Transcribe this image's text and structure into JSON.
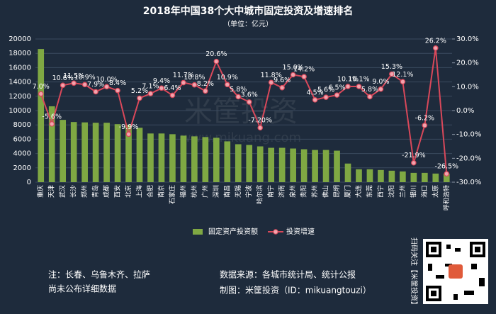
{
  "chart_data": {
    "type": "bar-line",
    "title": "2018年中国38个大中城市固定投资及增速排名",
    "subtitle": "（单位：亿元）",
    "categories": [
      "重庆",
      "天津",
      "武汉",
      "长沙",
      "郑州",
      "青岛",
      "成都",
      "西安",
      "北京",
      "上海",
      "合肥",
      "南京",
      "石家庄",
      "福州",
      "杭州",
      "广州",
      "深圳",
      "南昌",
      "无锡",
      "宁波",
      "哈尔滨",
      "南宁",
      "济南",
      "泉州",
      "贵阳",
      "苏州",
      "佛山",
      "昆明",
      "厦门",
      "大连",
      "东莞",
      "西宁",
      "沈阳",
      "兰州",
      "银川",
      "海口",
      "太原",
      "呼和浩特"
    ],
    "series": [
      {
        "name": "固定资产投资额",
        "type": "bar",
        "color": "#7fa843",
        "values": [
          18600,
          10600,
          8700,
          8400,
          8350,
          8300,
          8300,
          8100,
          8000,
          7600,
          6800,
          6800,
          6700,
          6500,
          6400,
          6300,
          6200,
          5700,
          5300,
          5200,
          5000,
          4800,
          4800,
          4700,
          4600,
          4500,
          4500,
          4400,
          2600,
          1800,
          1800,
          1700,
          1600,
          1500,
          1300,
          1300,
          1200,
          1200
        ]
      },
      {
        "name": "投资增速",
        "type": "line",
        "axis": "y2",
        "color": "#d9485a",
        "values": [
          7.0,
          -5.6,
          10.6,
          11.5,
          10.9,
          7.9,
          10.0,
          8.4,
          -9.9,
          5.2,
          7.1,
          9.4,
          6.4,
          11.7,
          10.8,
          8.2,
          20.6,
          10.9,
          5.8,
          3.6,
          -7.2,
          11.8,
          9.6,
          15.0,
          14.2,
          4.5,
          5.6,
          6.5,
          10.1,
          10.1,
          5.8,
          9.0,
          15.3,
          12.1,
          -21.9,
          -6.2,
          26.2,
          -26.5
        ],
        "value_labels": [
          "7.0%",
          "-5.6%",
          "10.6%",
          "11.5%",
          "10.9%",
          "7.9%",
          "10.0%",
          "8.4%",
          "-9.9%",
          "5.2%",
          "7.1%",
          "9.4%",
          "6.4%",
          "11.7%",
          "10.8%",
          "8.2%",
          "20.6%",
          "10.9%",
          "5.8%",
          "3.6%",
          "-7.20%",
          "11.8%",
          "9.6%",
          "15.0%",
          "14.2%",
          "4.5%",
          "5.6%",
          "6.5%",
          "10.1%",
          "10.1%",
          "5.8%",
          "9.0%",
          "15.3%",
          "12.1%",
          "-21.9%",
          "-6.2%",
          "26.2%",
          "-26.5%"
        ]
      }
    ],
    "ylim": [
      0,
      20000
    ],
    "yticks": [
      0,
      2000,
      4000,
      6000,
      8000,
      10000,
      12000,
      14000,
      16000,
      18000,
      20000
    ],
    "y2lim": [
      -30,
      30
    ],
    "y2ticks": [
      {
        "value": -30,
        "label": "-30.0%"
      },
      {
        "value": -20,
        "label": "-20.0%"
      },
      {
        "value": -10,
        "label": "-10.0%"
      },
      {
        "value": 0,
        "label": "0.0%"
      },
      {
        "value": 10,
        "label": "10.0%"
      },
      {
        "value": 20,
        "label": "20.0%"
      },
      {
        "value": 30,
        "label": "30.0%"
      }
    ],
    "grid": true,
    "legend": "bottom"
  },
  "watermark": {
    "brand": "米筐投资",
    "url": "www.mikuang.com"
  },
  "footer": {
    "note": [
      "注：长春、乌鲁木齐、拉萨",
      "尚未公布详细数据"
    ],
    "source": "数据来源：各城市统计局、统计公报",
    "credit": "制图：米筐投资（ID：mikuangtouzi）",
    "qr_caption": "扫码关注【米筐投资】"
  }
}
